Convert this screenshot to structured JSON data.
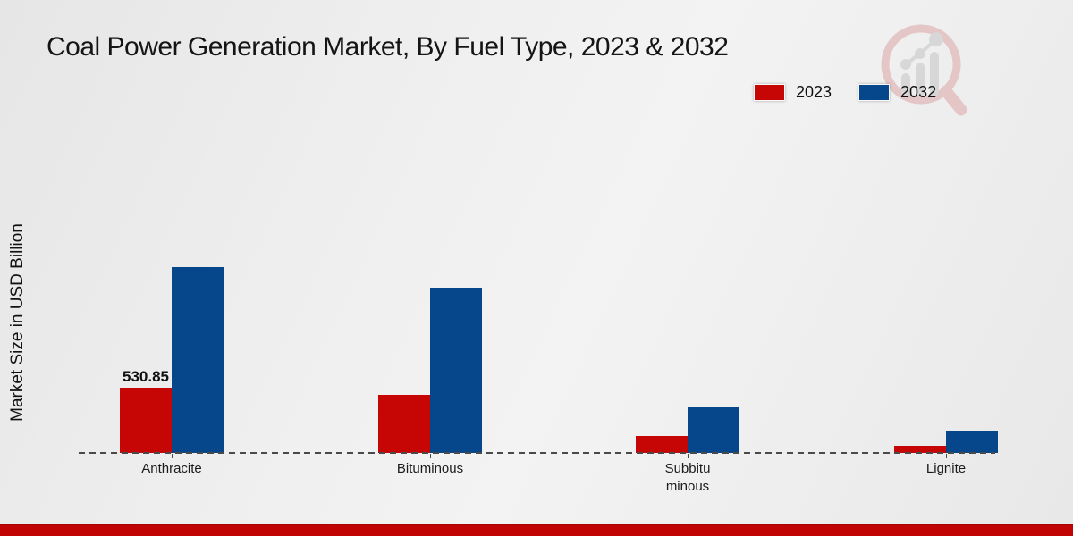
{
  "chart_data": {
    "type": "bar",
    "title": "Coal Power Generation Market, By Fuel Type, 2023 & 2032",
    "xlabel": "",
    "ylabel": "Market Size in USD Billion",
    "categories": [
      "Anthracite",
      "Bituminous",
      "Subbituminous",
      "Lignite"
    ],
    "category_display_lines": [
      [
        "Anthracite"
      ],
      [
        "Bituminous"
      ],
      [
        "Subbitu",
        "minous"
      ],
      [
        "Lignite"
      ]
    ],
    "series": [
      {
        "name": "2023",
        "color": "#c60505",
        "values": [
          530.85,
          473,
          138,
          58
        ]
      },
      {
        "name": "2032",
        "color": "#06478c",
        "values": [
          1512,
          1345,
          371,
          182
        ]
      }
    ],
    "ylim": [
      0,
      1600
    ],
    "grid": false,
    "legend_position": "top-right",
    "baseline_style": "dashed",
    "data_label": {
      "text": "530.85",
      "series": "2023",
      "category": "Anthracite"
    }
  },
  "watermark": {
    "icon": "magnifier-growth-chart-icon",
    "ring_color": "#e2bdbd",
    "bars_color": "#d2d2d2"
  },
  "footer": {
    "color": "#c00404"
  }
}
